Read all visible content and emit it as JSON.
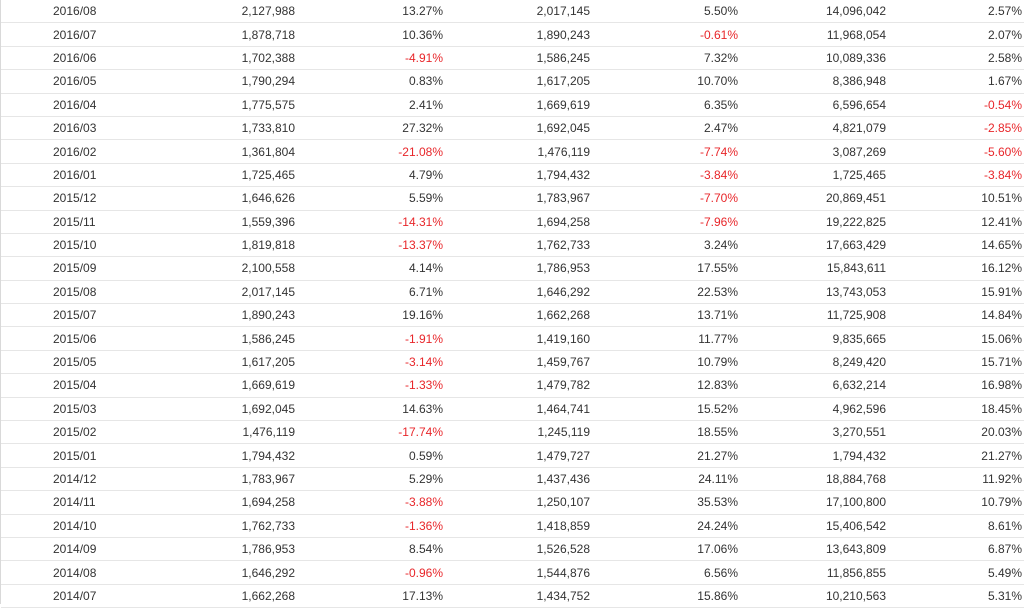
{
  "colors": {
    "negative": "#e8262a",
    "text": "#333333"
  },
  "rows": [
    [
      "2016/08",
      "2,127,988",
      "13.27%",
      "2,017,145",
      "5.50%",
      "14,096,042",
      "2.57%"
    ],
    [
      "2016/07",
      "1,878,718",
      "10.36%",
      "1,890,243",
      "-0.61%",
      "11,968,054",
      "2.07%"
    ],
    [
      "2016/06",
      "1,702,388",
      "-4.91%",
      "1,586,245",
      "7.32%",
      "10,089,336",
      "2.58%"
    ],
    [
      "2016/05",
      "1,790,294",
      "0.83%",
      "1,617,205",
      "10.70%",
      "8,386,948",
      "1.67%"
    ],
    [
      "2016/04",
      "1,775,575",
      "2.41%",
      "1,669,619",
      "6.35%",
      "6,596,654",
      "-0.54%"
    ],
    [
      "2016/03",
      "1,733,810",
      "27.32%",
      "1,692,045",
      "2.47%",
      "4,821,079",
      "-2.85%"
    ],
    [
      "2016/02",
      "1,361,804",
      "-21.08%",
      "1,476,119",
      "-7.74%",
      "3,087,269",
      "-5.60%"
    ],
    [
      "2016/01",
      "1,725,465",
      "4.79%",
      "1,794,432",
      "-3.84%",
      "1,725,465",
      "-3.84%"
    ],
    [
      "2015/12",
      "1,646,626",
      "5.59%",
      "1,783,967",
      "-7.70%",
      "20,869,451",
      "10.51%"
    ],
    [
      "2015/11",
      "1,559,396",
      "-14.31%",
      "1,694,258",
      "-7.96%",
      "19,222,825",
      "12.41%"
    ],
    [
      "2015/10",
      "1,819,818",
      "-13.37%",
      "1,762,733",
      "3.24%",
      "17,663,429",
      "14.65%"
    ],
    [
      "2015/09",
      "2,100,558",
      "4.14%",
      "1,786,953",
      "17.55%",
      "15,843,611",
      "16.12%"
    ],
    [
      "2015/08",
      "2,017,145",
      "6.71%",
      "1,646,292",
      "22.53%",
      "13,743,053",
      "15.91%"
    ],
    [
      "2015/07",
      "1,890,243",
      "19.16%",
      "1,662,268",
      "13.71%",
      "11,725,908",
      "14.84%"
    ],
    [
      "2015/06",
      "1,586,245",
      "-1.91%",
      "1,419,160",
      "11.77%",
      "9,835,665",
      "15.06%"
    ],
    [
      "2015/05",
      "1,617,205",
      "-3.14%",
      "1,459,767",
      "10.79%",
      "8,249,420",
      "15.71%"
    ],
    [
      "2015/04",
      "1,669,619",
      "-1.33%",
      "1,479,782",
      "12.83%",
      "6,632,214",
      "16.98%"
    ],
    [
      "2015/03",
      "1,692,045",
      "14.63%",
      "1,464,741",
      "15.52%",
      "4,962,596",
      "18.45%"
    ],
    [
      "2015/02",
      "1,476,119",
      "-17.74%",
      "1,245,119",
      "18.55%",
      "3,270,551",
      "20.03%"
    ],
    [
      "2015/01",
      "1,794,432",
      "0.59%",
      "1,479,727",
      "21.27%",
      "1,794,432",
      "21.27%"
    ],
    [
      "2014/12",
      "1,783,967",
      "5.29%",
      "1,437,436",
      "24.11%",
      "18,884,768",
      "11.92%"
    ],
    [
      "2014/11",
      "1,694,258",
      "-3.88%",
      "1,250,107",
      "35.53%",
      "17,100,800",
      "10.79%"
    ],
    [
      "2014/10",
      "1,762,733",
      "-1.36%",
      "1,418,859",
      "24.24%",
      "15,406,542",
      "8.61%"
    ],
    [
      "2014/09",
      "1,786,953",
      "8.54%",
      "1,526,528",
      "17.06%",
      "13,643,809",
      "6.87%"
    ],
    [
      "2014/08",
      "1,646,292",
      "-0.96%",
      "1,544,876",
      "6.56%",
      "11,856,855",
      "5.49%"
    ],
    [
      "2014/07",
      "1,662,268",
      "17.13%",
      "1,434,752",
      "15.86%",
      "10,210,563",
      "5.31%"
    ]
  ]
}
